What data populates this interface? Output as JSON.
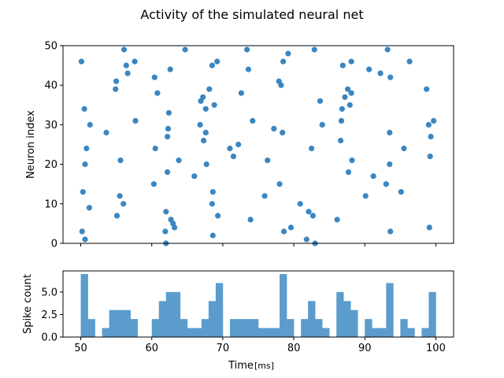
{
  "title": "Activity of the simulated neural net",
  "colors": {
    "marker": "#3b86c0",
    "bar": "#5b9ccd"
  },
  "chart_data": [
    {
      "type": "scatter",
      "name": "raster",
      "ylabel": "Neuron index",
      "xlim": [
        47.5,
        102.5
      ],
      "ylim": [
        0,
        50
      ],
      "xticks": [
        50,
        60,
        70,
        80,
        90,
        100
      ],
      "yticks": [
        0,
        10,
        20,
        30,
        40,
        50
      ],
      "ytick_labels": [
        "0",
        "10",
        "20",
        "30",
        "40",
        "50"
      ],
      "points": [
        [
          50.1,
          46
        ],
        [
          50.5,
          34
        ],
        [
          50.3,
          13
        ],
        [
          50.6,
          20
        ],
        [
          50.8,
          24
        ],
        [
          51.3,
          30
        ],
        [
          51.2,
          9
        ],
        [
          50.2,
          3
        ],
        [
          50.6,
          1
        ],
        [
          53.6,
          28
        ],
        [
          55.0,
          41
        ],
        [
          54.9,
          39
        ],
        [
          55.1,
          7
        ],
        [
          55.5,
          12
        ],
        [
          55.6,
          21
        ],
        [
          56.0,
          10
        ],
        [
          56.1,
          49
        ],
        [
          56.4,
          45
        ],
        [
          56.6,
          43
        ],
        [
          57.6,
          46
        ],
        [
          57.7,
          31
        ],
        [
          60.3,
          15
        ],
        [
          60.4,
          42
        ],
        [
          60.5,
          24
        ],
        [
          60.8,
          38
        ],
        [
          62.0,
          0
        ],
        [
          61.9,
          3
        ],
        [
          62.0,
          8
        ],
        [
          62.2,
          18
        ],
        [
          62.2,
          27
        ],
        [
          62.3,
          29
        ],
        [
          62.4,
          33
        ],
        [
          62.6,
          44
        ],
        [
          62.7,
          6
        ],
        [
          63.0,
          5
        ],
        [
          63.2,
          4
        ],
        [
          63.8,
          21
        ],
        [
          64.7,
          49
        ],
        [
          66.0,
          17
        ],
        [
          66.8,
          30
        ],
        [
          66.9,
          36
        ],
        [
          67.2,
          37
        ],
        [
          67.3,
          26
        ],
        [
          67.6,
          34
        ],
        [
          67.6,
          28
        ],
        [
          67.7,
          20
        ],
        [
          68.1,
          39
        ],
        [
          68.5,
          45
        ],
        [
          68.6,
          13
        ],
        [
          68.5,
          10
        ],
        [
          68.6,
          2
        ],
        [
          68.8,
          35
        ],
        [
          69.2,
          46
        ],
        [
          69.3,
          7
        ],
        [
          71.0,
          24
        ],
        [
          71.5,
          22
        ],
        [
          72.2,
          25
        ],
        [
          72.6,
          38
        ],
        [
          73.4,
          49
        ],
        [
          73.6,
          44
        ],
        [
          73.9,
          6
        ],
        [
          74.2,
          31
        ],
        [
          75.9,
          12
        ],
        [
          76.3,
          21
        ],
        [
          77.2,
          29
        ],
        [
          77.9,
          41
        ],
        [
          78.0,
          15
        ],
        [
          78.2,
          40
        ],
        [
          78.4,
          28
        ],
        [
          78.5,
          46
        ],
        [
          78.6,
          3
        ],
        [
          79.2,
          48
        ],
        [
          79.6,
          4
        ],
        [
          80.9,
          10
        ],
        [
          81.8,
          1
        ],
        [
          82.1,
          8
        ],
        [
          82.5,
          24
        ],
        [
          82.7,
          7
        ],
        [
          82.9,
          49
        ],
        [
          83.0,
          0
        ],
        [
          83.7,
          36
        ],
        [
          84.0,
          30
        ],
        [
          86.1,
          6
        ],
        [
          86.6,
          26
        ],
        [
          86.7,
          31
        ],
        [
          86.8,
          34
        ],
        [
          86.9,
          45
        ],
        [
          87.2,
          37
        ],
        [
          87.6,
          39
        ],
        [
          87.7,
          18
        ],
        [
          87.9,
          35
        ],
        [
          88.1,
          46
        ],
        [
          88.1,
          38
        ],
        [
          88.2,
          21
        ],
        [
          90.1,
          12
        ],
        [
          90.6,
          44
        ],
        [
          91.2,
          17
        ],
        [
          92.2,
          43
        ],
        [
          93.0,
          15
        ],
        [
          93.2,
          49
        ],
        [
          93.6,
          42
        ],
        [
          93.5,
          28
        ],
        [
          93.5,
          20
        ],
        [
          93.6,
          3
        ],
        [
          95.1,
          13
        ],
        [
          95.5,
          24
        ],
        [
          96.3,
          46
        ],
        [
          98.7,
          39
        ],
        [
          99.0,
          30
        ],
        [
          99.1,
          4
        ],
        [
          99.2,
          22
        ],
        [
          99.3,
          27
        ],
        [
          99.7,
          31
        ]
      ]
    },
    {
      "type": "bar",
      "name": "histogram",
      "xlabel": "Time",
      "xlabel_unit": "[ms]",
      "ylabel": "Spike count",
      "xlim": [
        47.5,
        102.5
      ],
      "ylim": [
        0,
        7.35
      ],
      "xticks": [
        50,
        60,
        70,
        80,
        90,
        100
      ],
      "xtick_labels": [
        "50",
        "60",
        "70",
        "80",
        "90",
        "100"
      ],
      "yticks": [
        0,
        2.5,
        5
      ],
      "ytick_labels": [
        "0.0",
        "2.5",
        "5.0"
      ],
      "bin_start": 50,
      "bin_width": 1,
      "values": [
        7,
        2,
        0,
        1,
        3,
        3,
        3,
        2,
        0,
        0,
        2,
        4,
        5,
        5,
        2,
        1,
        1,
        2,
        4,
        6,
        0,
        2,
        2,
        2,
        2,
        1,
        1,
        1,
        7,
        2,
        0,
        2,
        4,
        2,
        1,
        0,
        5,
        4,
        3,
        0,
        2,
        1,
        1,
        6,
        0,
        2,
        1,
        0,
        1,
        5
      ]
    }
  ]
}
